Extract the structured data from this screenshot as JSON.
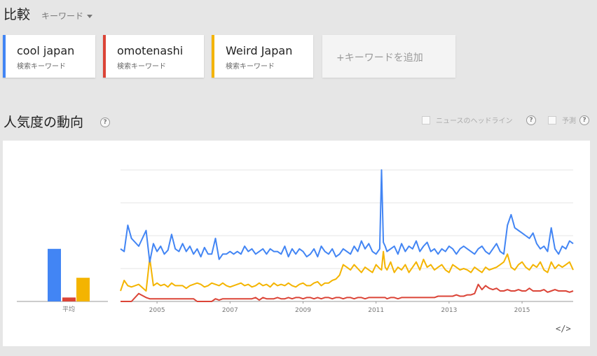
{
  "header": {
    "title": "比較",
    "mode_label": "キーワード"
  },
  "keywords": [
    {
      "term": "cool japan",
      "type": "検索キーワード",
      "color": "#4285f4"
    },
    {
      "term": "omotenashi",
      "type": "検索キーワード",
      "color": "#db4437"
    },
    {
      "term": "Weird Japan",
      "type": "検索キーワード",
      "color": "#f4b400"
    }
  ],
  "add_keyword_label": "+キーワードを追加",
  "interest": {
    "title": "人気度の動向",
    "help": "?",
    "news_headlines_label": "ニュースのヘッドライン",
    "forecast_label": "予測",
    "embed_label": "</>"
  },
  "chart_data": {
    "type": "line",
    "x_labels": [
      "2005",
      "2007",
      "2009",
      "2011",
      "2013",
      "2015"
    ],
    "x_range": [
      2004.0,
      2016.4
    ],
    "ylim": [
      0,
      100
    ],
    "grid": true,
    "average_label": "平均",
    "averages": {
      "cool japan": 40,
      "omotenashi": 3,
      "Weird Japan": 18
    },
    "x": [
      2004.0,
      2004.1,
      2004.2,
      2004.3,
      2004.5,
      2004.7,
      2004.8,
      2004.9,
      2005.0,
      2005.1,
      2005.2,
      2005.3,
      2005.4,
      2005.5,
      2005.6,
      2005.7,
      2005.8,
      2005.9,
      2006.0,
      2006.1,
      2006.2,
      2006.3,
      2006.4,
      2006.5,
      2006.6,
      2006.7,
      2006.8,
      2006.9,
      2007.0,
      2007.1,
      2007.2,
      2007.3,
      2007.4,
      2007.5,
      2007.6,
      2007.7,
      2007.8,
      2007.9,
      2008.0,
      2008.1,
      2008.2,
      2008.3,
      2008.4,
      2008.5,
      2008.6,
      2008.7,
      2008.8,
      2008.9,
      2009.0,
      2009.1,
      2009.2,
      2009.3,
      2009.4,
      2009.5,
      2009.6,
      2009.7,
      2009.8,
      2009.9,
      2010.0,
      2010.1,
      2010.2,
      2010.3,
      2010.4,
      2010.5,
      2010.6,
      2010.7,
      2010.8,
      2010.9,
      2011.0,
      2011.1,
      2011.15,
      2011.2,
      2011.25,
      2011.3,
      2011.4,
      2011.5,
      2011.6,
      2011.7,
      2011.8,
      2011.9,
      2012.0,
      2012.1,
      2012.2,
      2012.3,
      2012.4,
      2012.5,
      2012.6,
      2012.7,
      2012.8,
      2012.9,
      2013.0,
      2013.1,
      2013.2,
      2013.3,
      2013.4,
      2013.5,
      2013.6,
      2013.7,
      2013.8,
      2013.9,
      2014.0,
      2014.1,
      2014.2,
      2014.3,
      2014.4,
      2014.5,
      2014.6,
      2014.7,
      2014.8,
      2014.9,
      2015.0,
      2015.1,
      2015.2,
      2015.3,
      2015.4,
      2015.5,
      2015.6,
      2015.7,
      2015.8,
      2015.9,
      2016.0,
      2016.1,
      2016.2,
      2016.3,
      2016.4
    ],
    "series": [
      {
        "name": "cool japan",
        "color": "#4285f4",
        "values": [
          40,
          38,
          58,
          48,
          42,
          54,
          30,
          44,
          38,
          42,
          36,
          39,
          51,
          40,
          38,
          44,
          38,
          42,
          36,
          40,
          34,
          41,
          36,
          36,
          48,
          32,
          36,
          36,
          38,
          36,
          38,
          36,
          42,
          38,
          40,
          36,
          38,
          40,
          36,
          40,
          38,
          38,
          36,
          42,
          34,
          40,
          36,
          40,
          38,
          34,
          36,
          40,
          34,
          42,
          38,
          36,
          40,
          34,
          36,
          40,
          38,
          36,
          42,
          38,
          46,
          40,
          44,
          38,
          36,
          40,
          100,
          45,
          42,
          38,
          40,
          42,
          36,
          44,
          38,
          42,
          40,
          46,
          38,
          42,
          45,
          38,
          40,
          36,
          40,
          38,
          42,
          40,
          36,
          40,
          42,
          40,
          38,
          36,
          40,
          42,
          38,
          36,
          40,
          44,
          38,
          36,
          58,
          66,
          56,
          54,
          52,
          50,
          48,
          52,
          44,
          40,
          42,
          38,
          56,
          40,
          36,
          42,
          40,
          46,
          44
        ]
      },
      {
        "name": "omotenashi",
        "color": "#db4437",
        "values": [
          0,
          0,
          0,
          0,
          6,
          3,
          2,
          2,
          2,
          2,
          2,
          2,
          2,
          2,
          2,
          2,
          2,
          2,
          2,
          0,
          0,
          0,
          0,
          0,
          2,
          1,
          2,
          2,
          2,
          2,
          2,
          2,
          2,
          2,
          2,
          3,
          1,
          3,
          2,
          2,
          2,
          3,
          2,
          2,
          3,
          2,
          3,
          3,
          2,
          3,
          3,
          2,
          3,
          2,
          3,
          3,
          2,
          3,
          3,
          2,
          3,
          3,
          2,
          3,
          3,
          2,
          3,
          3,
          3,
          3,
          3,
          3,
          3,
          2,
          3,
          3,
          2,
          3,
          3,
          3,
          3,
          3,
          3,
          3,
          3,
          3,
          3,
          4,
          4,
          4,
          4,
          4,
          5,
          4,
          4,
          5,
          5,
          6,
          13,
          9,
          12,
          10,
          9,
          10,
          8,
          8,
          9,
          8,
          8,
          9,
          8,
          8,
          10,
          8,
          8,
          8,
          9,
          7,
          8,
          9,
          8,
          8,
          8,
          7,
          8
        ]
      },
      {
        "name": "Weird Japan",
        "color": "#f4b400",
        "values": [
          8,
          16,
          12,
          11,
          13,
          8,
          33,
          12,
          14,
          12,
          13,
          11,
          14,
          12,
          12,
          12,
          10,
          12,
          13,
          14,
          13,
          11,
          12,
          14,
          13,
          12,
          14,
          12,
          11,
          12,
          13,
          14,
          12,
          13,
          11,
          12,
          14,
          12,
          13,
          11,
          14,
          12,
          13,
          12,
          14,
          12,
          11,
          13,
          14,
          12,
          12,
          14,
          15,
          12,
          14,
          14,
          16,
          17,
          20,
          28,
          26,
          24,
          28,
          25,
          22,
          26,
          24,
          22,
          28,
          25,
          24,
          38,
          26,
          24,
          30,
          22,
          26,
          24,
          28,
          22,
          26,
          30,
          24,
          32,
          26,
          28,
          24,
          26,
          28,
          24,
          22,
          28,
          26,
          24,
          25,
          24,
          22,
          26,
          24,
          22,
          26,
          24,
          25,
          26,
          28,
          30,
          36,
          26,
          24,
          28,
          30,
          26,
          24,
          28,
          26,
          30,
          24,
          22,
          30,
          25,
          28,
          26,
          28,
          30,
          24
        ]
      }
    ]
  }
}
